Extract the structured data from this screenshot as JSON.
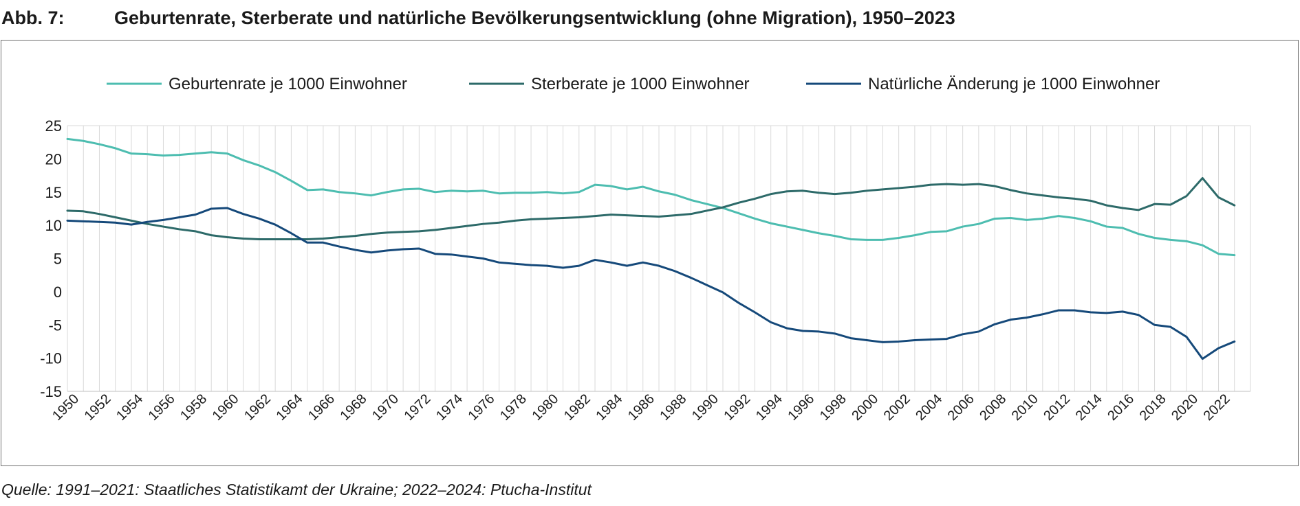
{
  "figure": {
    "label": "Abb. 7:",
    "title": "Geburtenrate, Sterberate und natürliche Bevölkerungsentwicklung (ohne Migration), 1950–2023",
    "source": "Quelle: 1991–2021: Staatliches Statistikamt der Ukraine; 2022–2024: Ptucha-Institut"
  },
  "chart_data": {
    "type": "line",
    "title": "",
    "xlabel": "",
    "ylabel": "",
    "ylim": [
      -15,
      25
    ],
    "yticks": [
      25,
      20,
      15,
      10,
      5,
      0,
      -5,
      -10,
      -15
    ],
    "grid": "vertical",
    "legend_position": "top",
    "x": [
      1950,
      1951,
      1952,
      1953,
      1954,
      1955,
      1956,
      1957,
      1958,
      1959,
      1960,
      1961,
      1962,
      1963,
      1964,
      1965,
      1966,
      1967,
      1968,
      1969,
      1970,
      1971,
      1972,
      1973,
      1974,
      1975,
      1976,
      1977,
      1978,
      1979,
      1980,
      1981,
      1982,
      1983,
      1984,
      1985,
      1986,
      1987,
      1988,
      1989,
      1990,
      1991,
      1992,
      1993,
      1994,
      1995,
      1996,
      1997,
      1998,
      1999,
      2000,
      2001,
      2002,
      2003,
      2004,
      2005,
      2006,
      2007,
      2008,
      2009,
      2010,
      2011,
      2012,
      2013,
      2014,
      2015,
      2016,
      2017,
      2018,
      2019,
      2020,
      2021,
      2022,
      2023
    ],
    "x_tick_labels": [
      "1950",
      "1952",
      "1954",
      "1956",
      "1958",
      "1960",
      "1962",
      "1964",
      "1966",
      "1968",
      "1970",
      "1972",
      "1974",
      "1976",
      "1978",
      "1980",
      "1982",
      "1984",
      "1986",
      "1988",
      "1990",
      "1992",
      "1994",
      "1996",
      "1998",
      "2000",
      "2002",
      "2004",
      "2006",
      "2008",
      "2010",
      "2012",
      "2014",
      "2016",
      "2018",
      "2020",
      "2022"
    ],
    "series": [
      {
        "name": "Geburtenrate je 1000 Einwohner",
        "color": "#4dbdb0",
        "values": [
          23.0,
          22.7,
          22.2,
          21.6,
          20.8,
          20.7,
          20.5,
          20.6,
          20.8,
          21.0,
          20.8,
          19.8,
          19.0,
          18.0,
          16.7,
          15.3,
          15.4,
          15.0,
          14.8,
          14.5,
          15.0,
          15.4,
          15.5,
          15.0,
          15.2,
          15.1,
          15.2,
          14.8,
          14.9,
          14.9,
          15.0,
          14.8,
          15.0,
          16.1,
          15.9,
          15.4,
          15.8,
          15.1,
          14.6,
          13.8,
          13.2,
          12.6,
          11.8,
          11.0,
          10.3,
          9.8,
          9.3,
          8.8,
          8.4,
          7.9,
          7.8,
          7.8,
          8.1,
          8.5,
          9.0,
          9.1,
          9.8,
          10.2,
          11.0,
          11.1,
          10.8,
          11.0,
          11.4,
          11.1,
          10.6,
          9.8,
          9.6,
          8.7,
          8.1,
          7.8,
          7.6,
          7.0,
          5.7,
          5.5
        ]
      },
      {
        "name": "Sterberate je 1000 Einwohner",
        "color": "#2d6a69",
        "values": [
          12.2,
          12.1,
          11.7,
          11.2,
          10.7,
          10.2,
          9.8,
          9.4,
          9.1,
          8.5,
          8.2,
          8.0,
          7.9,
          7.9,
          7.9,
          7.9,
          8.0,
          8.2,
          8.4,
          8.7,
          8.9,
          9.0,
          9.1,
          9.3,
          9.6,
          9.9,
          10.2,
          10.4,
          10.7,
          10.9,
          11.0,
          11.1,
          11.2,
          11.4,
          11.6,
          11.5,
          11.4,
          11.3,
          11.5,
          11.7,
          12.2,
          12.7,
          13.4,
          14.0,
          14.7,
          15.1,
          15.2,
          14.9,
          14.7,
          14.9,
          15.2,
          15.4,
          15.6,
          15.8,
          16.1,
          16.2,
          16.1,
          16.2,
          15.9,
          15.3,
          14.8,
          14.5,
          14.2,
          14.0,
          13.7,
          13.0,
          12.6,
          12.3,
          13.2,
          13.1,
          14.4,
          17.1,
          14.2,
          13.0
        ]
      },
      {
        "name": "Natürliche Änderung je 1000 Einwohner",
        "color": "#15497a",
        "values": [
          10.7,
          10.6,
          10.5,
          10.4,
          10.1,
          10.5,
          10.8,
          11.2,
          11.6,
          12.5,
          12.6,
          11.7,
          11.0,
          10.1,
          8.8,
          7.4,
          7.4,
          6.8,
          6.3,
          5.9,
          6.2,
          6.4,
          6.5,
          5.7,
          5.6,
          5.3,
          5.0,
          4.4,
          4.2,
          4.0,
          3.9,
          3.6,
          3.9,
          4.8,
          4.4,
          3.9,
          4.4,
          3.9,
          3.1,
          2.1,
          1.0,
          -0.1,
          -1.7,
          -3.1,
          -4.6,
          -5.5,
          -5.9,
          -6.0,
          -6.3,
          -7.0,
          -7.3,
          -7.6,
          -7.5,
          -7.3,
          -7.2,
          -7.1,
          -6.4,
          -6.0,
          -4.9,
          -4.2,
          -3.9,
          -3.4,
          -2.8,
          -2.8,
          -3.1,
          -3.2,
          -3.0,
          -3.5,
          -5.0,
          -5.3,
          -6.8,
          -10.1,
          -8.5,
          -7.5
        ]
      }
    ]
  }
}
